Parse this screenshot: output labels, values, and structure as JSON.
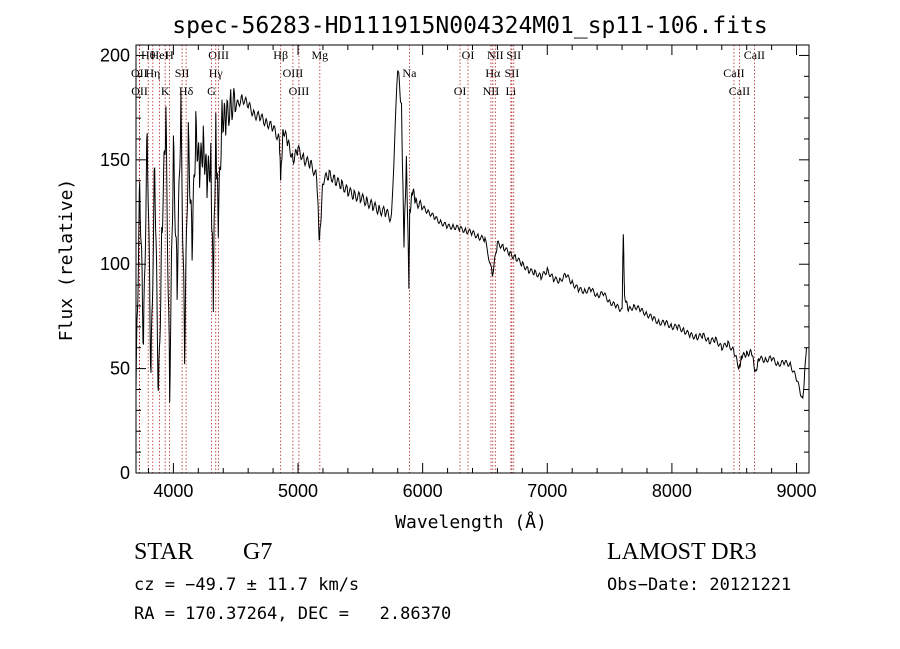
{
  "chart_data": {
    "type": "line",
    "title": "spec-56283-HD111915N004324M01_sp11-106.fits",
    "xlabel": "Wavelength (Å)",
    "ylabel": "Flux (relative)",
    "xlim": [
      3700,
      9100
    ],
    "ylim": [
      0,
      205
    ],
    "xticks": [
      4000,
      5000,
      6000,
      7000,
      8000,
      9000
    ],
    "yticks": [
      0,
      50,
      100,
      150,
      200
    ],
    "series": [
      {
        "name": "spectrum",
        "x": [
          3700,
          3730,
          3760,
          3790,
          3820,
          3850,
          3880,
          3910,
          3940,
          3970,
          4000,
          4030,
          4060,
          4090,
          4120,
          4150,
          4180,
          4210,
          4240,
          4270,
          4300,
          4320,
          4340,
          4360,
          4390,
          4420,
          4460,
          4500,
          4550,
          4600,
          4650,
          4700,
          4750,
          4800,
          4850,
          4861,
          4880,
          4920,
          4960,
          5000,
          5050,
          5100,
          5150,
          5172,
          5200,
          5250,
          5300,
          5350,
          5400,
          5450,
          5500,
          5550,
          5600,
          5650,
          5700,
          5750,
          5800,
          5830,
          5850,
          5870,
          5890,
          5896,
          5920,
          5950,
          6000,
          6050,
          6100,
          6150,
          6200,
          6250,
          6300,
          6350,
          6400,
          6450,
          6500,
          6560,
          6600,
          6650,
          6700,
          6750,
          6800,
          6850,
          6900,
          6950,
          7000,
          7050,
          7100,
          7150,
          7200,
          7250,
          7300,
          7350,
          7400,
          7450,
          7500,
          7550,
          7600,
          7610,
          7620,
          7650,
          7700,
          7750,
          7800,
          7850,
          7900,
          7950,
          8000,
          8050,
          8100,
          8150,
          8200,
          8250,
          8300,
          8350,
          8400,
          8450,
          8500,
          8540,
          8560,
          8600,
          8640,
          8670,
          8700,
          8750,
          8800,
          8850,
          8900,
          8950,
          9000,
          9050,
          9080
        ],
        "y": [
          40,
          140,
          60,
          165,
          45,
          150,
          35,
          120,
          170,
          40,
          155,
          90,
          175,
          60,
          160,
          110,
          165,
          145,
          158,
          140,
          150,
          85,
          165,
          120,
          172,
          168,
          178,
          175,
          180,
          176,
          172,
          170,
          168,
          165,
          160,
          140,
          165,
          158,
          150,
          155,
          150,
          148,
          142,
          110,
          140,
          143,
          140,
          138,
          135,
          133,
          132,
          130,
          128,
          126,
          125,
          122,
          195,
          175,
          110,
          150,
          90,
          125,
          135,
          130,
          127,
          125,
          122,
          120,
          118,
          118,
          117,
          116,
          115,
          113,
          112,
          95,
          110,
          108,
          105,
          103,
          100,
          97,
          96,
          94,
          97,
          93,
          92,
          95,
          91,
          88,
          87,
          88,
          85,
          86,
          82,
          80,
          78,
          115,
          85,
          78,
          80,
          78,
          76,
          74,
          72,
          72,
          70,
          70,
          68,
          66,
          65,
          66,
          63,
          64,
          60,
          62,
          58,
          50,
          56,
          57,
          58,
          48,
          55,
          54,
          55,
          52,
          53,
          52,
          45,
          35,
          60
        ]
      }
    ]
  },
  "line_ids": [
    {
      "label": "Hθ",
      "x": 3798
    },
    {
      "label": "OII",
      "x": 3727
    },
    {
      "label": "OII",
      "x": 3729
    },
    {
      "label": "HeI",
      "x": 3889
    },
    {
      "label": "Hη",
      "x": 3835
    },
    {
      "label": "K",
      "x": 3934
    },
    {
      "label": "H",
      "x": 3968
    },
    {
      "label": "SII",
      "x": 4070
    },
    {
      "label": "Hδ",
      "x": 4102
    },
    {
      "label": "OIII",
      "x": 4363
    },
    {
      "label": "Hγ",
      "x": 4340
    },
    {
      "label": "G",
      "x": 4305
    },
    {
      "label": "Hβ",
      "x": 4861
    },
    {
      "label": "OIII",
      "x": 4959
    },
    {
      "label": "OIII",
      "x": 5007
    },
    {
      "label": "Mg",
      "x": 5175
    },
    {
      "label": "Na",
      "x": 5894
    },
    {
      "label": "OI",
      "x": 6300
    },
    {
      "label": "OI",
      "x": 6364
    },
    {
      "label": "Hα",
      "x": 6563
    },
    {
      "label": "NII",
      "x": 6548
    },
    {
      "label": "NII",
      "x": 6583
    },
    {
      "label": "SII",
      "x": 6716
    },
    {
      "label": "Li",
      "x": 6708
    },
    {
      "label": "SII",
      "x": 6731
    },
    {
      "label": "CaII",
      "x": 8498
    },
    {
      "label": "CaII",
      "x": 8542
    },
    {
      "label": "CaII",
      "x": 8662
    }
  ],
  "footer": {
    "object_type": "STAR",
    "subclass": "G7",
    "survey": "LAMOST DR3",
    "cz": "cz = −49.7 ± 11.7 km/s",
    "obs_date": "Obs−Date: 20121221",
    "coords": "RA = 170.37264, DEC =   2.86370"
  },
  "colors": {
    "line": "#000000",
    "id_lines": "#b22222"
  }
}
